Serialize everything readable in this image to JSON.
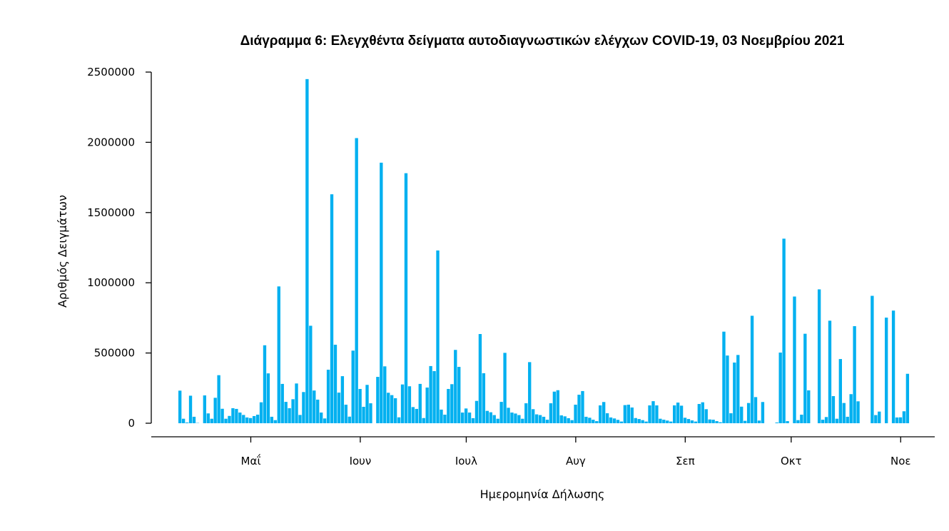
{
  "chart_data": {
    "type": "bar",
    "title": "Διάγραμμα 6: Ελεγχθέντα δείγματα αυτοδιαγνωστικών ελέγχων COVID-19, 03 Νοεμβρίου 2021",
    "xlabel": "Ημερομηνία Δήλωσης",
    "ylabel": "Αριθμός Δειγμάτων",
    "ylim": [
      0,
      2500000
    ],
    "yticks": [
      0,
      500000,
      1000000,
      1500000,
      2000000,
      2500000
    ],
    "ytick_labels": [
      "0",
      "500000",
      "1000000",
      "1500000",
      "2000000",
      "2500000"
    ],
    "x_start_date": "2021-04-11",
    "xticks": [
      {
        "label": "Μαΐ",
        "day_index": 20
      },
      {
        "label": "Ιουν",
        "day_index": 51
      },
      {
        "label": "Ιουλ",
        "day_index": 81
      },
      {
        "label": "Αυγ",
        "day_index": 112
      },
      {
        "label": "Σεπ",
        "day_index": 143
      },
      {
        "label": "Οκτ",
        "day_index": 173
      },
      {
        "label": "Νοε",
        "day_index": 204
      }
    ],
    "values_thousands": [
      232,
      32,
      5,
      196,
      46,
      2,
      0,
      198,
      70,
      32,
      181,
      342,
      103,
      32,
      52,
      107,
      102,
      76,
      59,
      41,
      37,
      51,
      61,
      149,
      555,
      355,
      46,
      22,
      974,
      280,
      152,
      107,
      171,
      283,
      59,
      222,
      2450,
      694,
      233,
      168,
      76,
      34,
      381,
      1630,
      559,
      218,
      335,
      132,
      47,
      517,
      2030,
      244,
      117,
      273,
      142,
      0,
      330,
      1855,
      405,
      217,
      200,
      178,
      42,
      276,
      1780,
      263,
      115,
      102,
      280,
      37,
      254,
      407,
      371,
      1230,
      97,
      61,
      244,
      278,
      522,
      401,
      76,
      105,
      76,
      36,
      159,
      635,
      356,
      88,
      78,
      58,
      32,
      152,
      501,
      110,
      76,
      69,
      58,
      32,
      142,
      435,
      100,
      63,
      58,
      46,
      25,
      142,
      225,
      235,
      56,
      49,
      36,
      22,
      132,
      203,
      229,
      46,
      39,
      25,
      15,
      127,
      151,
      71,
      41,
      34,
      24,
      12,
      129,
      132,
      112,
      37,
      30,
      22,
      12,
      127,
      157,
      127,
      32,
      25,
      19,
      12,
      127,
      147,
      125,
      39,
      30,
      20,
      12,
      137,
      149,
      100,
      27,
      25,
      15,
      7,
      652,
      482,
      71,
      432,
      486,
      118,
      17,
      144,
      765,
      186,
      19,
      151,
      0,
      0,
      0,
      5,
      503,
      1314,
      15,
      0,
      902,
      22,
      61,
      637,
      234,
      0,
      0,
      953,
      25,
      44,
      730,
      193,
      32,
      457,
      144,
      46,
      207,
      691,
      156,
      0,
      0,
      0,
      907,
      58,
      83,
      0,
      752,
      0,
      802,
      41,
      42,
      85,
      352
    ],
    "bar_color": "#00B0F0",
    "grid": false,
    "legend": "none"
  }
}
